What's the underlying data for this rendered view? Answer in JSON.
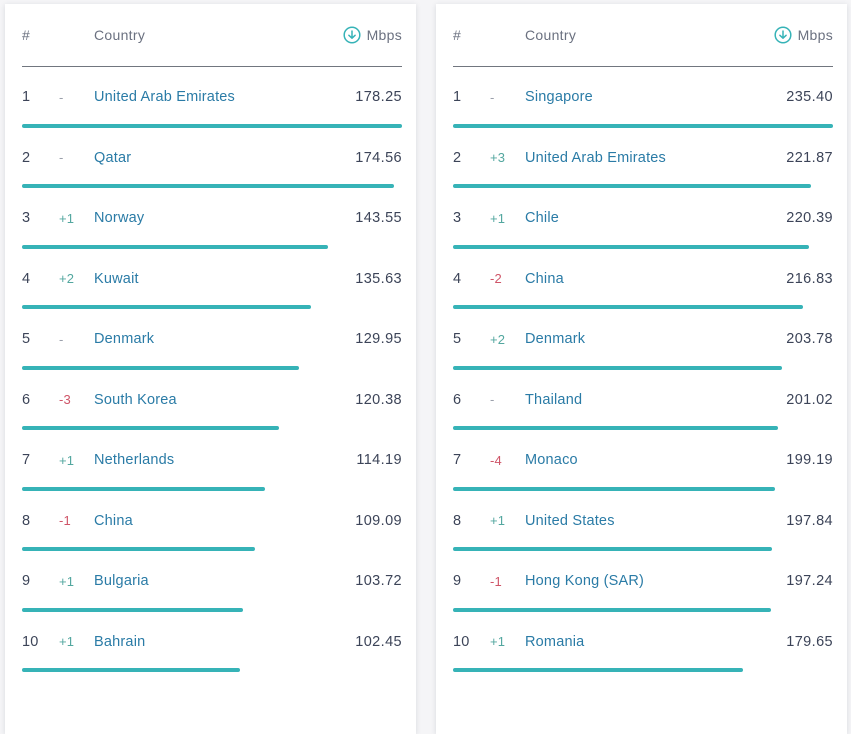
{
  "colors": {
    "bar": "#36b3b7",
    "country_link": "#2a7ba6",
    "positive_change": "#53a79f",
    "negative_change": "#cf5568",
    "neutral_change": "#9ba0ab"
  },
  "tables": [
    {
      "header": {
        "rank": "#",
        "country": "Country",
        "unit": "Mbps",
        "sort_icon": "download-circle-icon"
      },
      "rows": [
        {
          "rank": "1",
          "change": "-",
          "country": "United Arab Emirates",
          "value": "178.25"
        },
        {
          "rank": "2",
          "change": "-",
          "country": "Qatar",
          "value": "174.56"
        },
        {
          "rank": "3",
          "change": "+1",
          "country": "Norway",
          "value": "143.55"
        },
        {
          "rank": "4",
          "change": "+2",
          "country": "Kuwait",
          "value": "135.63"
        },
        {
          "rank": "5",
          "change": "-",
          "country": "Denmark",
          "value": "129.95"
        },
        {
          "rank": "6",
          "change": "-3",
          "country": "South Korea",
          "value": "120.38"
        },
        {
          "rank": "7",
          "change": "+1",
          "country": "Netherlands",
          "value": "114.19"
        },
        {
          "rank": "8",
          "change": "-1",
          "country": "China",
          "value": "109.09"
        },
        {
          "rank": "9",
          "change": "+1",
          "country": "Bulgaria",
          "value": "103.72"
        },
        {
          "rank": "10",
          "change": "+1",
          "country": "Bahrain",
          "value": "102.45"
        }
      ]
    },
    {
      "header": {
        "rank": "#",
        "country": "Country",
        "unit": "Mbps",
        "sort_icon": "download-circle-icon"
      },
      "rows": [
        {
          "rank": "1",
          "change": "-",
          "country": "Singapore",
          "value": "235.40"
        },
        {
          "rank": "2",
          "change": "+3",
          "country": "United Arab Emirates",
          "value": "221.87"
        },
        {
          "rank": "3",
          "change": "+1",
          "country": "Chile",
          "value": "220.39"
        },
        {
          "rank": "4",
          "change": "-2",
          "country": "China",
          "value": "216.83"
        },
        {
          "rank": "5",
          "change": "+2",
          "country": "Denmark",
          "value": "203.78"
        },
        {
          "rank": "6",
          "change": "-",
          "country": "Thailand",
          "value": "201.02"
        },
        {
          "rank": "7",
          "change": "-4",
          "country": "Monaco",
          "value": "199.19"
        },
        {
          "rank": "8",
          "change": "+1",
          "country": "United States",
          "value": "197.84"
        },
        {
          "rank": "9",
          "change": "-1",
          "country": "Hong Kong (SAR)",
          "value": "197.24"
        },
        {
          "rank": "10",
          "change": "+1",
          "country": "Romania",
          "value": "179.65"
        }
      ]
    }
  ]
}
